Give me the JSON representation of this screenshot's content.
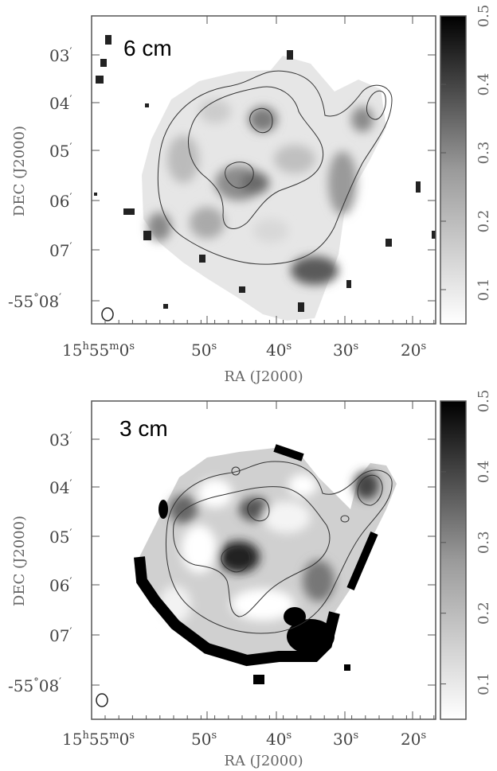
{
  "chart_data": [
    {
      "type": "heatmap",
      "band_label": "6 cm",
      "xlabel": "RA (J2000)",
      "ylabel": "DEC (J2000)",
      "x_ticks": [
        {
          "h": "15",
          "m": "55",
          "s": "0"
        },
        {
          "s": "50"
        },
        {
          "s": "40"
        },
        {
          "s": "30"
        },
        {
          "s": "20"
        }
      ],
      "y_ticks": [
        {
          "d": "",
          "m": "03"
        },
        {
          "d": "",
          "m": "04"
        },
        {
          "d": "",
          "m": "05"
        },
        {
          "d": "",
          "m": "06"
        },
        {
          "d": "",
          "m": "07"
        },
        {
          "d": "-55",
          "m": "08"
        }
      ],
      "colorbar": {
        "range": [
          0.05,
          0.5
        ],
        "ticks": [
          "0.1",
          "0.2",
          "0.3",
          "0.4",
          "0.5"
        ]
      },
      "grid": false
    },
    {
      "type": "heatmap",
      "band_label": "3 cm",
      "xlabel": "RA (J2000)",
      "ylabel": "DEC (J2000)",
      "x_ticks": [
        {
          "h": "15",
          "m": "55",
          "s": "0"
        },
        {
          "s": "50"
        },
        {
          "s": "40"
        },
        {
          "s": "30"
        },
        {
          "s": "20"
        }
      ],
      "y_ticks": [
        {
          "d": "",
          "m": "03"
        },
        {
          "d": "",
          "m": "04"
        },
        {
          "d": "",
          "m": "05"
        },
        {
          "d": "",
          "m": "06"
        },
        {
          "d": "",
          "m": "07"
        },
        {
          "d": "-55",
          "m": "08"
        }
      ],
      "colorbar": {
        "range": [
          0.05,
          0.5
        ],
        "ticks": [
          "0.1",
          "0.2",
          "0.3",
          "0.4",
          "0.5"
        ]
      },
      "grid": false
    }
  ],
  "colors": {
    "frame": "#555555",
    "contour": "#333333",
    "dark": "#000000",
    "light": "#ffffff"
  }
}
